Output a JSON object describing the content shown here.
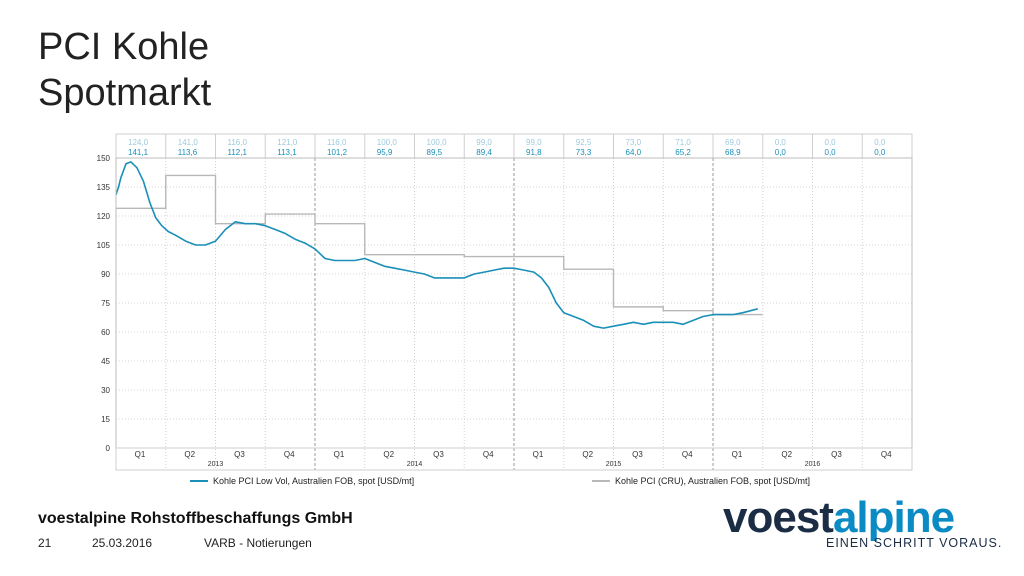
{
  "slide": {
    "title_line1": "PCI Kohle",
    "title_line2": "Spotmarkt",
    "company": "voestalpine Rohstoffbeschaffungs GmbH",
    "page_number": "21",
    "date": "25.03.2016",
    "section": "VARB - Notierungen",
    "logo_part1": "voest",
    "logo_part2": "alpine",
    "slogan": "EINEN SCHRITT VORAUS."
  },
  "colors": {
    "series_low_vol": "#1a8fb8",
    "series_cru": "#b8b8b8",
    "grid": "#cfcfcf",
    "header_text_cru": "#9ec9dc",
    "header_text_low_vol": "#1a8fb8"
  },
  "chart_data": {
    "type": "line",
    "ylim": [
      0,
      150
    ],
    "yticks": [
      "0",
      "15",
      "30",
      "45",
      "60",
      "75",
      "90",
      "105",
      "120",
      "135",
      "150"
    ],
    "quarters": [
      "Q1",
      "Q2",
      "Q3",
      "Q4",
      "Q1",
      "Q2",
      "Q3",
      "Q4",
      "Q1",
      "Q2",
      "Q3",
      "Q4",
      "Q1",
      "Q2",
      "Q3",
      "Q4"
    ],
    "years": [
      "2013",
      "2014",
      "2015",
      "2016"
    ],
    "header_row_cru": [
      "124,0",
      "141,0",
      "116,0",
      "121,0",
      "116,0",
      "100,0",
      "100,0",
      "99,0",
      "99,0",
      "92,5",
      "73,0",
      "71,0",
      "69,0",
      "0,0",
      "0,0",
      "0,0"
    ],
    "header_row_low_vol": [
      "141,1",
      "113,6",
      "112,1",
      "113,1",
      "101,2",
      "95,9",
      "89,5",
      "89,4",
      "91,8",
      "73,3",
      "64,0",
      "65,2",
      "68,9",
      "0,0",
      "0,0",
      "0,0"
    ],
    "series": [
      {
        "name": "Kohle PCI Low Vol, Australien FOB, spot [USD/mt]",
        "style": "line",
        "points": [
          [
            0,
            131
          ],
          [
            0.05,
            135
          ],
          [
            0.1,
            140
          ],
          [
            0.2,
            147
          ],
          [
            0.3,
            148
          ],
          [
            0.42,
            145
          ],
          [
            0.55,
            138
          ],
          [
            0.68,
            127
          ],
          [
            0.8,
            119
          ],
          [
            0.92,
            115
          ],
          [
            1.05,
            112
          ],
          [
            1.2,
            110
          ],
          [
            1.4,
            107
          ],
          [
            1.6,
            105
          ],
          [
            1.8,
            105
          ],
          [
            2.0,
            107
          ],
          [
            2.2,
            113
          ],
          [
            2.4,
            117
          ],
          [
            2.6,
            116
          ],
          [
            2.8,
            116
          ],
          [
            3.0,
            115
          ],
          [
            3.2,
            113
          ],
          [
            3.4,
            111
          ],
          [
            3.6,
            108
          ],
          [
            3.8,
            106
          ],
          [
            4.0,
            103
          ],
          [
            4.2,
            98
          ],
          [
            4.4,
            97
          ],
          [
            4.6,
            97
          ],
          [
            4.8,
            97
          ],
          [
            5.0,
            98
          ],
          [
            5.2,
            96
          ],
          [
            5.4,
            94
          ],
          [
            5.6,
            93
          ],
          [
            5.8,
            92
          ],
          [
            6.0,
            91
          ],
          [
            6.2,
            90
          ],
          [
            6.4,
            88
          ],
          [
            6.6,
            88
          ],
          [
            6.8,
            88
          ],
          [
            7.0,
            88
          ],
          [
            7.2,
            90
          ],
          [
            7.4,
            91
          ],
          [
            7.6,
            92
          ],
          [
            7.8,
            93
          ],
          [
            8.0,
            93
          ],
          [
            8.2,
            92
          ],
          [
            8.4,
            91
          ],
          [
            8.55,
            88
          ],
          [
            8.7,
            83
          ],
          [
            8.85,
            75
          ],
          [
            9.0,
            70
          ],
          [
            9.2,
            68
          ],
          [
            9.4,
            66
          ],
          [
            9.6,
            63
          ],
          [
            9.8,
            62
          ],
          [
            10.0,
            63
          ],
          [
            10.2,
            64
          ],
          [
            10.4,
            65
          ],
          [
            10.6,
            64
          ],
          [
            10.8,
            65
          ],
          [
            11.0,
            65
          ],
          [
            11.2,
            65
          ],
          [
            11.4,
            64
          ],
          [
            11.6,
            66
          ],
          [
            11.8,
            68
          ],
          [
            12.0,
            69
          ],
          [
            12.2,
            69
          ],
          [
            12.4,
            69
          ],
          [
            12.6,
            70
          ],
          [
            12.9,
            72
          ]
        ]
      },
      {
        "name": "Kohle PCI (CRU), Australien FOB, spot [USD/mt]",
        "style": "step",
        "values": [
          124.0,
          141.0,
          116.0,
          121.0,
          116.0,
          100.0,
          100.0,
          99.0,
          99.0,
          92.5,
          73.0,
          71.0,
          69.0,
          0,
          0,
          0
        ],
        "end_quarter": 13
      }
    ]
  }
}
